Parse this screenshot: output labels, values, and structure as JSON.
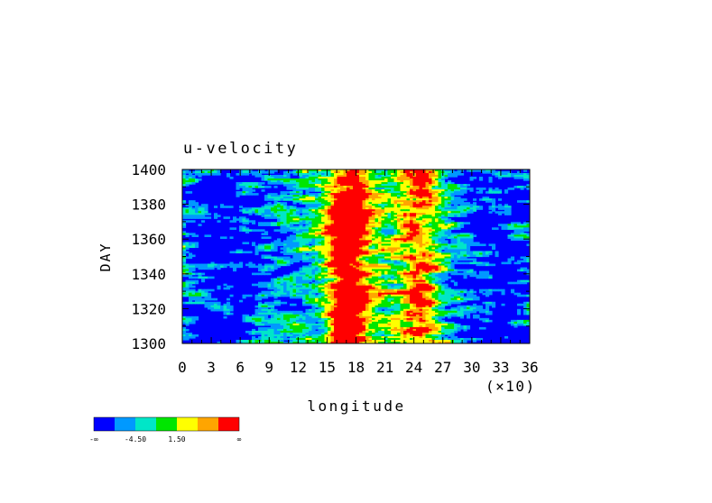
{
  "chart_data": {
    "type": "heatmap",
    "title": "u-velocity",
    "xlabel": "longitude",
    "x_multiplier_label": "(×10)",
    "ylabel": "DAY",
    "xlim": [
      0,
      36
    ],
    "ylim": [
      1300,
      1400
    ],
    "x_ticks": [
      "0",
      "3",
      "6",
      "9",
      "12",
      "15",
      "18",
      "21",
      "24",
      "27",
      "30",
      "33",
      "36"
    ],
    "y_ticks": [
      "1300",
      "1320",
      "1340",
      "1360",
      "1380",
      "1400"
    ],
    "colorbar": {
      "colors": [
        "#0000ff",
        "#0099ff",
        "#00e6c8",
        "#00e600",
        "#ffff00",
        "#ffa500",
        "#ff0000"
      ],
      "labels": [
        "-∞",
        "-4.50",
        "1.50",
        "∞"
      ]
    },
    "field_summary": "Mostly negative (blue) background with positive maxima (yellow/orange/red) concentrated near longitude 160-190 throughout the period and near longitude 240-270, strongest near days 1320-1335 and 1355-1370."
  }
}
